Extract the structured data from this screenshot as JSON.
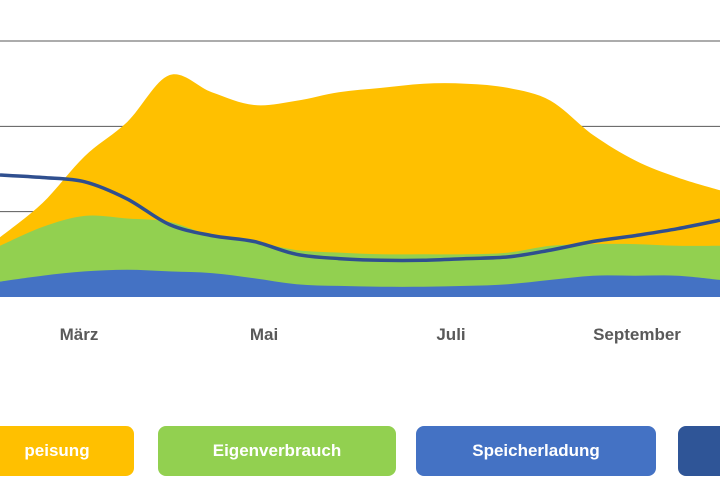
{
  "chart_data": {
    "type": "area",
    "x_tick_labels": [
      "März",
      "Mai",
      "Juli",
      "September"
    ],
    "grid": true,
    "y_range": [
      0,
      3
    ],
    "legend_position": "bottom",
    "series": [
      {
        "name": "Einspeisung",
        "kind": "area",
        "color": "#FFC000",
        "x": [
          0,
          0.5,
          1,
          1.5,
          2,
          2.5,
          3,
          3.5,
          4,
          4.5,
          5,
          5.5,
          6,
          6.5,
          7,
          7.5,
          8,
          8.5
        ],
        "values": [
          0.7,
          1.1,
          1.65,
          2.05,
          2.6,
          2.4,
          2.25,
          2.3,
          2.4,
          2.45,
          2.5,
          2.5,
          2.45,
          2.3,
          1.9,
          1.6,
          1.4,
          1.25
        ]
      },
      {
        "name": "Eigenverbrauch",
        "kind": "area",
        "color": "#92D050",
        "x": [
          0,
          0.5,
          1,
          1.5,
          2,
          2.5,
          3,
          3.5,
          4,
          4.5,
          5,
          5.5,
          6,
          6.5,
          7,
          7.5,
          8,
          8.5
        ],
        "values": [
          0.6,
          0.82,
          0.95,
          0.92,
          0.88,
          0.72,
          0.65,
          0.55,
          0.52,
          0.5,
          0.5,
          0.5,
          0.52,
          0.6,
          0.62,
          0.62,
          0.6,
          0.6
        ]
      },
      {
        "name": "Speicherladung",
        "kind": "area",
        "color": "#4472C4",
        "x": [
          0,
          0.5,
          1,
          1.5,
          2,
          2.5,
          3,
          3.5,
          4,
          4.5,
          5,
          5.5,
          6,
          6.5,
          7,
          7.5,
          8,
          8.5
        ],
        "values": [
          0.18,
          0.25,
          0.3,
          0.32,
          0.3,
          0.28,
          0.22,
          0.15,
          0.13,
          0.12,
          0.12,
          0.13,
          0.15,
          0.2,
          0.25,
          0.25,
          0.25,
          0.2
        ]
      },
      {
        "name": "",
        "kind": "line",
        "color": "#2F4F8F",
        "x": [
          0,
          0.5,
          1,
          1.5,
          2,
          2.5,
          3,
          3.5,
          4,
          4.5,
          5,
          5.5,
          6,
          6.5,
          7,
          7.5,
          8,
          8.5
        ],
        "values": [
          1.43,
          1.4,
          1.35,
          1.15,
          0.85,
          0.72,
          0.65,
          0.5,
          0.45,
          0.43,
          0.43,
          0.45,
          0.47,
          0.55,
          0.65,
          0.72,
          0.8,
          0.9
        ]
      }
    ]
  },
  "legend": [
    {
      "label": "peisung",
      "color": "#FFC000"
    },
    {
      "label": "Eigenverbrauch",
      "color": "#92D050"
    },
    {
      "label": "Speicherladung",
      "color": "#4472C4"
    },
    {
      "label": "",
      "color": "#2F5597"
    }
  ],
  "gridline_color": "#595959"
}
